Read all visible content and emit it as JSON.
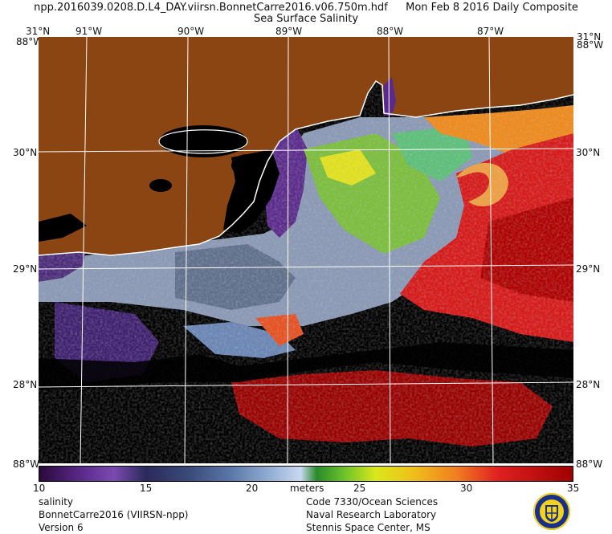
{
  "header": {
    "filename": "npp.2016039.0208.D.L4_DAY.viirsn.BonnetCarre2016.v06.750m.hdf",
    "date": "Mon Feb  8 2016 Daily Composite",
    "product": "Sea Surface Salinity"
  },
  "map": {
    "longitude_ticks": [
      "91°W",
      "90°W",
      "89°W",
      "88°W",
      "87°W"
    ],
    "latitude_ticks": [
      "30°N",
      "29°N",
      "28°N"
    ],
    "corner_top_left": "31°N",
    "corner_top_right": "31°N",
    "corner_bottom_left": "88°W",
    "corner_bottom_right": "88°W",
    "corner_overlap_left": "88°W",
    "corner_overlap_right": "88°W",
    "land_color": "#8b4513",
    "no_data_color": "#000000",
    "grid_color": "#ffffff"
  },
  "colorbar": {
    "ticks": [
      "10",
      "15",
      "20",
      "25",
      "30",
      "35"
    ],
    "unit": "meters",
    "min": 10,
    "max": 35
  },
  "footer": {
    "left": [
      "salinity",
      "BonnetCarre2016 (VIIRSN-npp)",
      "Version 6"
    ],
    "right": [
      "Code 7330/Ocean Sciences",
      "Naval Research Laboratory",
      "Stennis Space Center, MS"
    ]
  }
}
